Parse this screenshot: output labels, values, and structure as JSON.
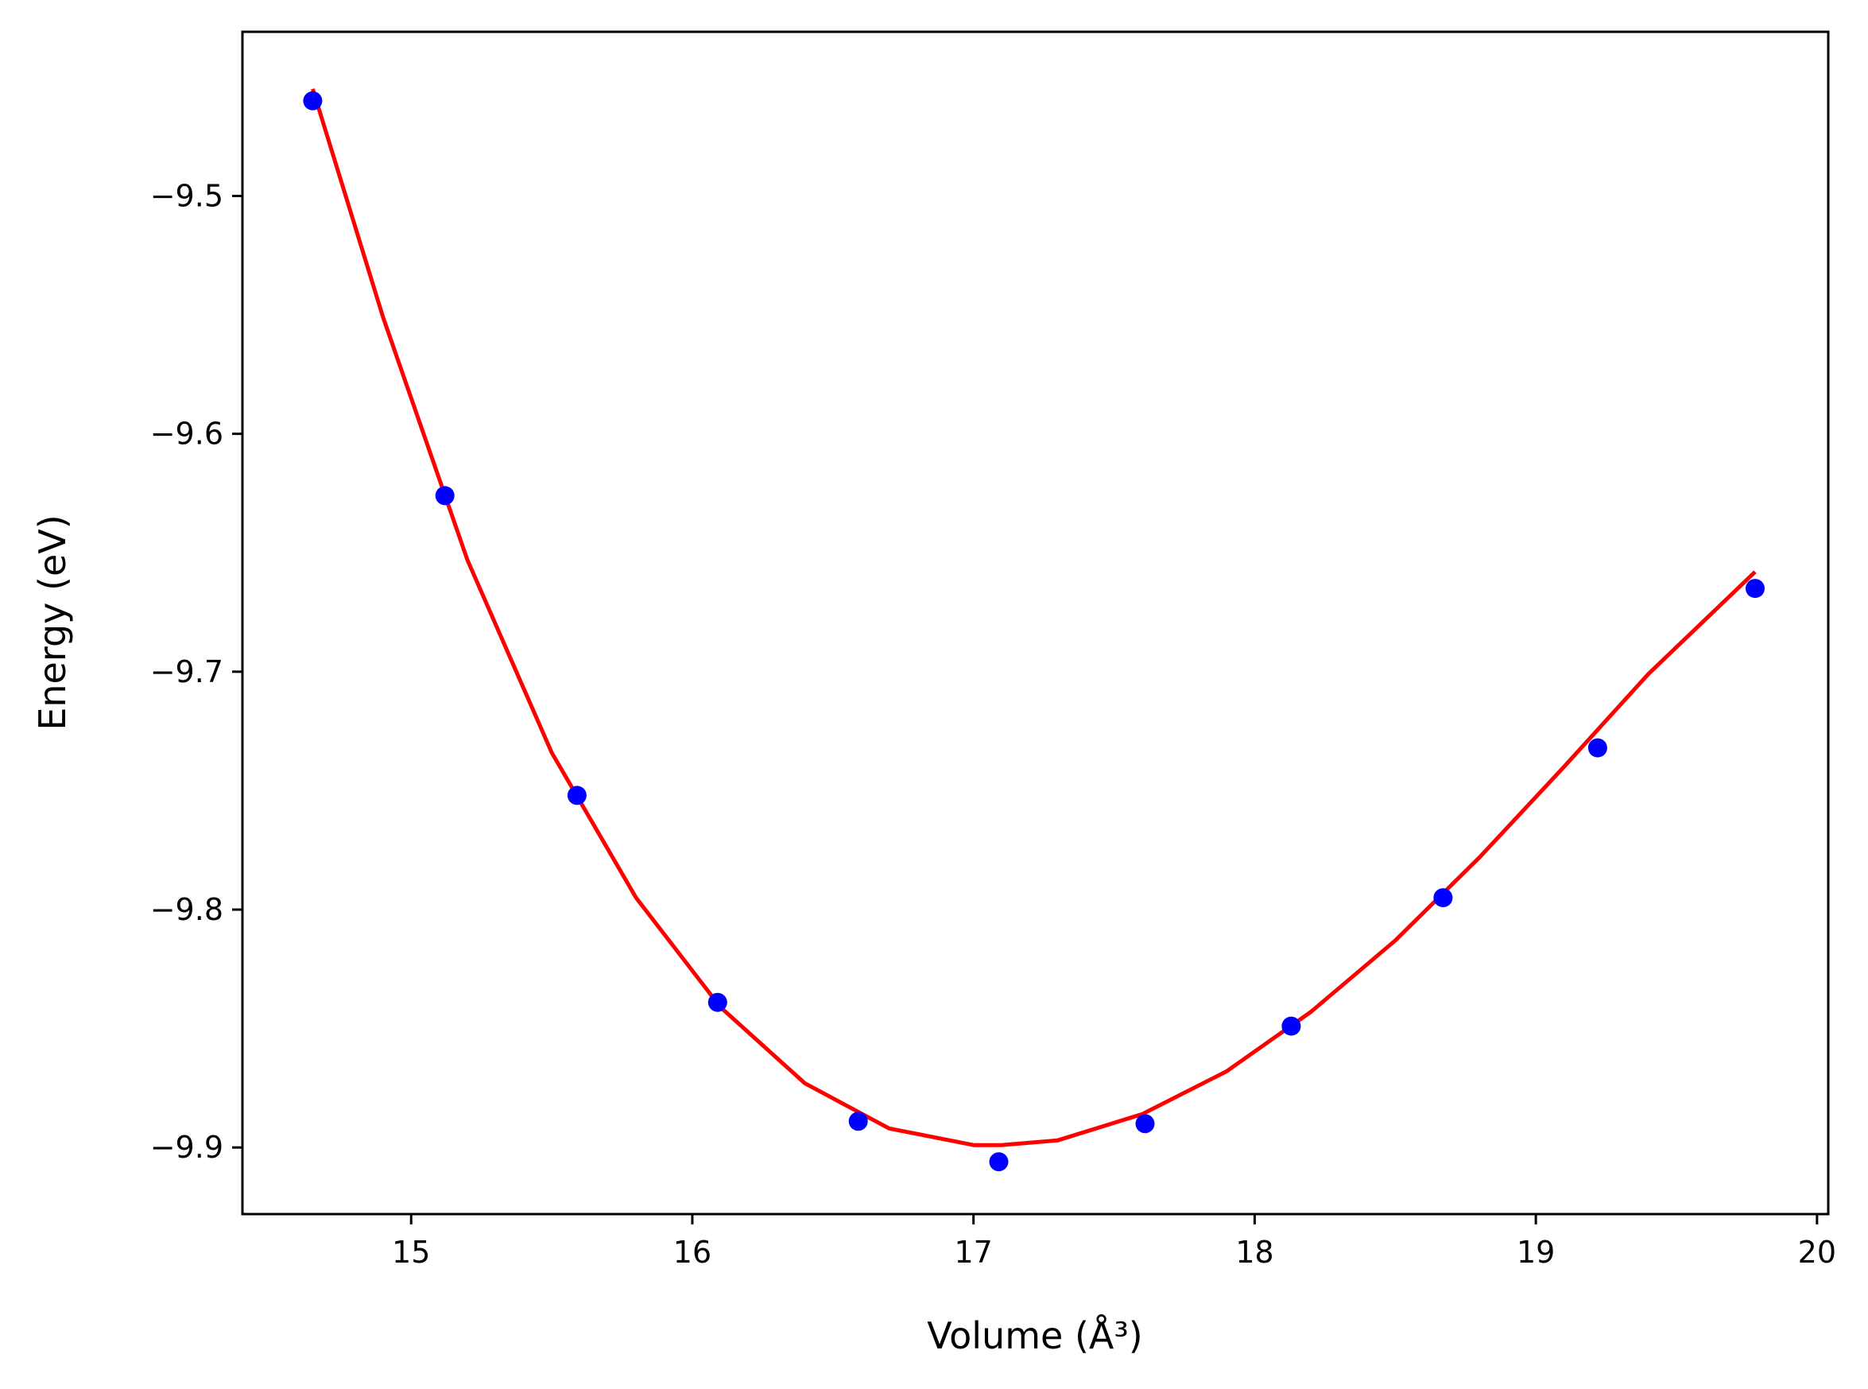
{
  "chart_data": {
    "type": "scatter",
    "xlabel": "Volume (Å³)",
    "ylabel": "Energy (eV)",
    "xlim": [
      14.4,
      20.04
    ],
    "ylim": [
      -9.928,
      -9.431
    ],
    "xticks": [
      15,
      16,
      17,
      18,
      19,
      20
    ],
    "xtick_labels": [
      "15",
      "16",
      "17",
      "18",
      "19",
      "20"
    ],
    "yticks": [
      -9.5,
      -9.6,
      -9.7,
      -9.8,
      -9.9
    ],
    "ytick_labels": [
      "−9.5",
      "−9.6",
      "−9.7",
      "−9.8",
      "−9.9"
    ],
    "grid": false,
    "legend": "none",
    "series": [
      {
        "kind": "scatter",
        "color": "#0000ff",
        "x": [
          14.65,
          15.12,
          15.59,
          16.09,
          16.59,
          17.09,
          17.61,
          18.13,
          18.67,
          19.22,
          19.78
        ],
        "y": [
          -9.46,
          -9.626,
          -9.752,
          -9.839,
          -9.889,
          -9.906,
          -9.89,
          -9.849,
          -9.795,
          -9.732,
          -9.665
        ]
      },
      {
        "kind": "line",
        "color": "#ff0000",
        "x": [
          14.65,
          14.9,
          15.2,
          15.5,
          15.8,
          16.1,
          16.4,
          16.7,
          17.0,
          17.1,
          17.3,
          17.6,
          17.9,
          18.2,
          18.5,
          18.8,
          19.1,
          19.4,
          19.78
        ],
        "y": [
          -9.455,
          -9.551,
          -9.653,
          -9.734,
          -9.795,
          -9.841,
          -9.873,
          -9.892,
          -9.899,
          -9.899,
          -9.897,
          -9.886,
          -9.868,
          -9.843,
          -9.813,
          -9.778,
          -9.74,
          -9.701,
          -9.658
        ]
      }
    ]
  }
}
